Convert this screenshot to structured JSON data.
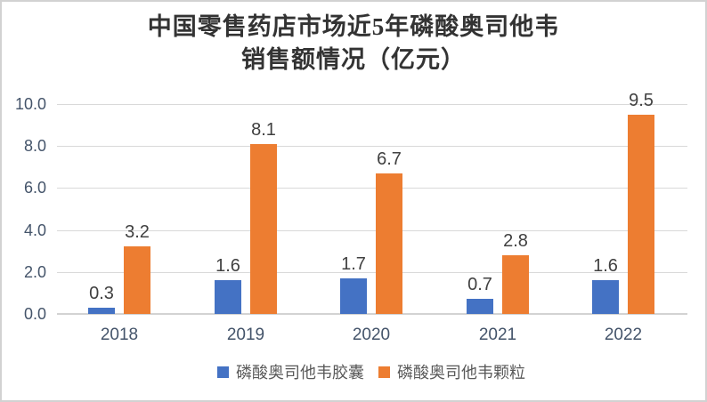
{
  "title": {
    "line1": "中国零售药店市场近5年磷酸奥司他韦",
    "line2": "销售额情况（亿元）"
  },
  "colors": {
    "series1": "#4472C4",
    "series2": "#ED7D31",
    "gridline": "#D9D9D9",
    "axis_label": "#44546A",
    "data_label": "#404040",
    "legend_text": "#595959",
    "title_text": "#333333",
    "border": "#D2D2D2",
    "background": "#FFFFFF"
  },
  "chart_data": {
    "type": "bar",
    "title": "中国零售药店市场近5年磷酸奥司他韦销售额情况（亿元）",
    "categories": [
      "2018",
      "2019",
      "2020",
      "2021",
      "2022"
    ],
    "series": [
      {
        "name": "磷酸奥司他韦胶囊",
        "color_key": "series1",
        "values": [
          0.3,
          1.6,
          1.7,
          0.7,
          1.6
        ]
      },
      {
        "name": "磷酸奥司他韦颗粒",
        "color_key": "series2",
        "values": [
          3.2,
          8.1,
          6.7,
          2.8,
          9.5
        ]
      }
    ],
    "xlabel": "",
    "ylabel": "",
    "ylim": [
      0,
      10
    ],
    "ytick_step": 2,
    "ytick_labels": [
      "0.0",
      "2.0",
      "4.0",
      "6.0",
      "8.0",
      "10.0"
    ],
    "grid": true,
    "data_labels": true,
    "data_label_decimals": 1,
    "legend_position": "bottom"
  }
}
